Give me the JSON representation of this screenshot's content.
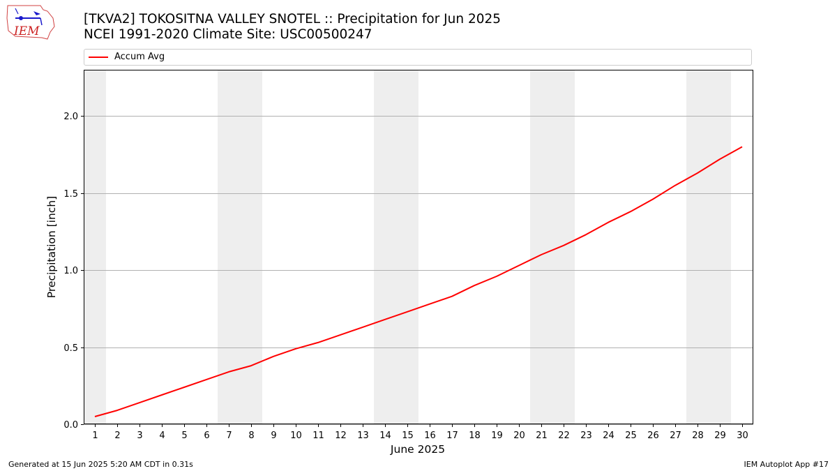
{
  "header": {
    "logo_text": "IEM",
    "title_line1": "[TKVA2] TOKOSITNA VALLEY SNOTEL :: Precipitation for Jun 2025",
    "title_line2": "NCEI 1991-2020 Climate Site: USC00500247"
  },
  "footer": {
    "generated": "Generated at 15 Jun 2025 5:20 AM CDT in 0.31s",
    "app": "IEM Autoplot App #17"
  },
  "colors": {
    "line": "#ff0000",
    "weekend_band": "#eeeeee",
    "grid": "#b0b0b0"
  },
  "chart_data": {
    "type": "line",
    "xlabel": "June 2025",
    "ylabel": "Precipitation [inch]",
    "ylim": [
      0,
      2.3
    ],
    "xlim": [
      0.5,
      30.5
    ],
    "yticks": [
      0.0,
      0.5,
      1.0,
      1.5,
      2.0
    ],
    "ytick_labels": [
      "0.0",
      "0.5",
      "1.0",
      "1.5",
      "2.0"
    ],
    "grid": "horizontal",
    "legend_position": "top",
    "weekend_days": [
      1,
      7,
      8,
      14,
      15,
      21,
      22,
      28,
      29
    ],
    "x": [
      1,
      2,
      3,
      4,
      5,
      6,
      7,
      8,
      9,
      10,
      11,
      12,
      13,
      14,
      15,
      16,
      17,
      18,
      19,
      20,
      21,
      22,
      23,
      24,
      25,
      26,
      27,
      28,
      29,
      30
    ],
    "series": [
      {
        "name": "Accum Avg",
        "color": "#ff0000",
        "values": [
          0.05,
          0.09,
          0.14,
          0.19,
          0.24,
          0.29,
          0.34,
          0.38,
          0.44,
          0.49,
          0.53,
          0.58,
          0.63,
          0.68,
          0.73,
          0.78,
          0.83,
          0.9,
          0.96,
          1.03,
          1.1,
          1.16,
          1.23,
          1.31,
          1.38,
          1.46,
          1.55,
          1.63,
          1.72,
          1.8
        ]
      }
    ]
  }
}
